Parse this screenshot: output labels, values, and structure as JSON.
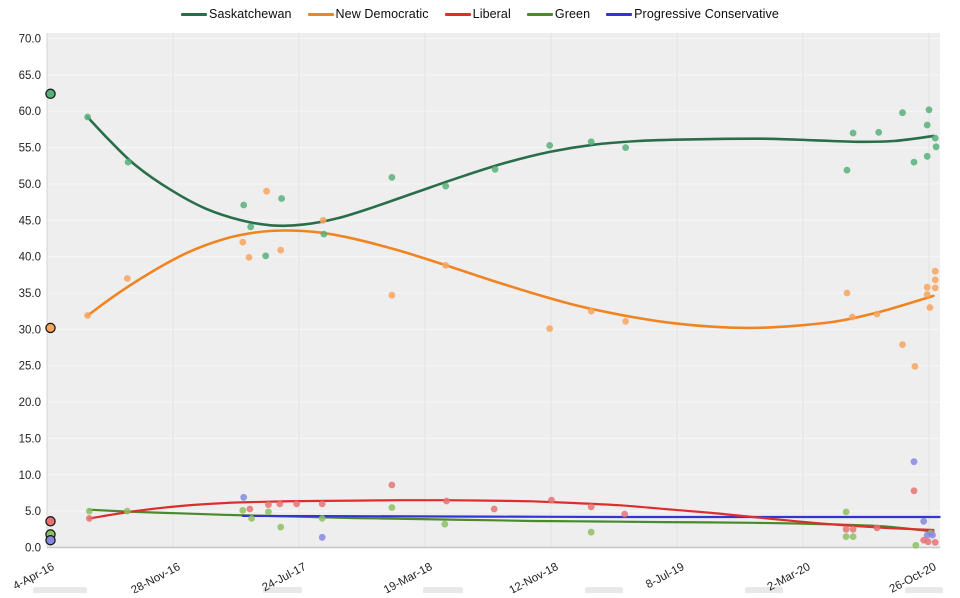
{
  "legend": {
    "items": [
      {
        "label": "Saskatchewan",
        "color": "#2a6e49"
      },
      {
        "label": "New Democratic",
        "color": "#f08421"
      },
      {
        "label": "Liberal",
        "color": "#dd2e2e"
      },
      {
        "label": "Green",
        "color": "#4a8a2c"
      },
      {
        "label": "Progressive Conservative",
        "color": "#3434d2"
      }
    ]
  },
  "chart_data": {
    "type": "scatter",
    "title": "",
    "xlabel": "",
    "ylabel": "",
    "ylim": [
      0,
      70
    ],
    "y_step": 5,
    "grid": true,
    "legend_position": "top",
    "plot_bg": "#eeeeef",
    "h_grid_color": "#f7f7f7",
    "v_grid_color": "#e3e3e3",
    "axis_line_color": "#c6c6c6",
    "label_color": "#1f1f1f",
    "x_tick_labels": [
      "4-Apr-16",
      "28-Nov-16",
      "24-Jul-17",
      "19-Mar-18",
      "12-Nov-18",
      "8-Jul-19",
      "2-Mar-20",
      "26-Oct-20"
    ],
    "y_tick_labels": [
      "0.0",
      "5.0",
      "10.0",
      "15.0",
      "20.0",
      "25.0",
      "30.0",
      "35.0",
      "40.0",
      "45.0",
      "50.0",
      "55.0",
      "60.0",
      "65.0",
      "70.0"
    ],
    "series": [
      {
        "name": "Green",
        "line_color": "#4a8a2c",
        "point_color": "#8cbf60",
        "election": [
          0.004,
          1.8
        ],
        "trend": [
          [
            0.048,
            5.2
          ],
          [
            0.1,
            4.9
          ],
          [
            0.15,
            4.7
          ],
          [
            0.2,
            4.5
          ],
          [
            0.25,
            4.35
          ],
          [
            0.3,
            4.2
          ],
          [
            0.35,
            4.05
          ],
          [
            0.4,
            3.95
          ],
          [
            0.45,
            3.85
          ],
          [
            0.5,
            3.75
          ],
          [
            0.55,
            3.65
          ],
          [
            0.6,
            3.6
          ],
          [
            0.65,
            3.55
          ],
          [
            0.7,
            3.5
          ],
          [
            0.75,
            3.45
          ],
          [
            0.8,
            3.4
          ],
          [
            0.85,
            3.3
          ],
          [
            0.9,
            3.15
          ],
          [
            0.95,
            2.9
          ],
          [
            1.005,
            2.2
          ]
        ],
        "points": [
          [
            0.048,
            5.0
          ],
          [
            0.091,
            5.0
          ],
          [
            0.222,
            5.1
          ],
          [
            0.232,
            4.0
          ],
          [
            0.251,
            4.9
          ],
          [
            0.265,
            2.8
          ],
          [
            0.312,
            4.0
          ],
          [
            0.391,
            5.5
          ],
          [
            0.451,
            3.2
          ],
          [
            0.617,
            2.1
          ],
          [
            0.906,
            4.9
          ],
          [
            0.906,
            1.5
          ],
          [
            0.914,
            1.5
          ],
          [
            0.985,
            0.3
          ],
          [
            1.002,
            2.0
          ]
        ]
      },
      {
        "name": "Progressive Conservative",
        "line_color": "#3434d2",
        "point_color": "#8787e0",
        "election": [
          0.004,
          1.0
        ],
        "trend": [
          [
            0.222,
            4.35
          ],
          [
            0.35,
            4.3
          ],
          [
            0.5,
            4.25
          ],
          [
            0.65,
            4.2
          ],
          [
            0.8,
            4.2
          ],
          [
            0.95,
            4.2
          ],
          [
            1.012,
            4.2
          ]
        ],
        "points": [
          [
            0.223,
            6.9
          ],
          [
            0.312,
            1.4
          ],
          [
            0.983,
            11.8
          ],
          [
            0.994,
            3.6
          ],
          [
            0.998,
            1.7
          ],
          [
            1.004,
            1.7
          ]
        ]
      },
      {
        "name": "Liberal",
        "line_color": "#dd2e2e",
        "point_color": "#e87272",
        "election": [
          0.004,
          3.6
        ],
        "trend": [
          [
            0.048,
            4.0
          ],
          [
            0.1,
            5.0
          ],
          [
            0.15,
            5.7
          ],
          [
            0.2,
            6.1
          ],
          [
            0.25,
            6.3
          ],
          [
            0.3,
            6.4
          ],
          [
            0.35,
            6.45
          ],
          [
            0.4,
            6.5
          ],
          [
            0.45,
            6.5
          ],
          [
            0.5,
            6.45
          ],
          [
            0.55,
            6.35
          ],
          [
            0.6,
            6.1
          ],
          [
            0.65,
            5.8
          ],
          [
            0.7,
            5.3
          ],
          [
            0.75,
            4.8
          ],
          [
            0.8,
            4.2
          ],
          [
            0.85,
            3.6
          ],
          [
            0.9,
            3.1
          ],
          [
            0.95,
            2.7
          ],
          [
            1.005,
            2.4
          ]
        ],
        "points": [
          [
            0.048,
            4.0
          ],
          [
            0.23,
            5.3
          ],
          [
            0.251,
            5.9
          ],
          [
            0.264,
            6.0
          ],
          [
            0.283,
            6.0
          ],
          [
            0.312,
            6.0
          ],
          [
            0.391,
            8.6
          ],
          [
            0.453,
            6.4
          ],
          [
            0.507,
            5.3
          ],
          [
            0.572,
            6.5
          ],
          [
            0.617,
            5.6
          ],
          [
            0.655,
            4.6
          ],
          [
            0.906,
            2.5
          ],
          [
            0.914,
            2.5
          ],
          [
            0.941,
            2.7
          ],
          [
            0.983,
            7.8
          ],
          [
            0.994,
            1.0
          ],
          [
            0.999,
            0.8
          ],
          [
            1.007,
            0.7
          ]
        ]
      },
      {
        "name": "New Democratic",
        "line_color": "#f08421",
        "point_color": "#f7a55e",
        "election": [
          0.004,
          30.2
        ],
        "trend": [
          [
            0.046,
            31.9
          ],
          [
            0.08,
            34.9
          ],
          [
            0.12,
            38.0
          ],
          [
            0.16,
            40.6
          ],
          [
            0.2,
            42.4
          ],
          [
            0.235,
            43.3
          ],
          [
            0.27,
            43.6
          ],
          [
            0.31,
            43.3
          ],
          [
            0.35,
            42.4
          ],
          [
            0.4,
            40.8
          ],
          [
            0.45,
            38.9
          ],
          [
            0.5,
            36.9
          ],
          [
            0.55,
            35.0
          ],
          [
            0.6,
            33.3
          ],
          [
            0.65,
            32.0
          ],
          [
            0.7,
            31.0
          ],
          [
            0.75,
            30.4
          ],
          [
            0.8,
            30.2
          ],
          [
            0.85,
            30.5
          ],
          [
            0.9,
            31.2
          ],
          [
            0.95,
            32.6
          ],
          [
            1.005,
            34.6
          ]
        ],
        "points": [
          [
            0.046,
            31.9
          ],
          [
            0.091,
            37.0
          ],
          [
            0.222,
            42.0
          ],
          [
            0.229,
            39.9
          ],
          [
            0.249,
            49.0
          ],
          [
            0.265,
            40.9
          ],
          [
            0.313,
            45.0
          ],
          [
            0.391,
            34.7
          ],
          [
            0.452,
            38.8
          ],
          [
            0.57,
            30.1
          ],
          [
            0.617,
            32.5
          ],
          [
            0.656,
            31.1
          ],
          [
            0.907,
            35.0
          ],
          [
            0.913,
            31.7
          ],
          [
            0.941,
            32.1
          ],
          [
            0.97,
            27.9
          ],
          [
            0.984,
            24.9
          ],
          [
            0.998,
            35.8
          ],
          [
            0.998,
            34.8
          ],
          [
            1.001,
            33.0
          ],
          [
            1.007,
            38.0
          ],
          [
            1.007,
            36.8
          ],
          [
            1.007,
            35.7
          ]
        ]
      },
      {
        "name": "Saskatchewan",
        "line_color": "#2a6e49",
        "point_color": "#57b07a",
        "election": [
          0.004,
          62.4
        ],
        "trend": [
          [
            0.046,
            59.2
          ],
          [
            0.07,
            56.1
          ],
          [
            0.1,
            52.6
          ],
          [
            0.14,
            49.2
          ],
          [
            0.18,
            46.6
          ],
          [
            0.22,
            45.0
          ],
          [
            0.255,
            44.3
          ],
          [
            0.29,
            44.4
          ],
          [
            0.33,
            45.3
          ],
          [
            0.37,
            46.8
          ],
          [
            0.42,
            48.9
          ],
          [
            0.47,
            51.0
          ],
          [
            0.52,
            52.9
          ],
          [
            0.57,
            54.4
          ],
          [
            0.62,
            55.4
          ],
          [
            0.67,
            55.9
          ],
          [
            0.72,
            56.1
          ],
          [
            0.77,
            56.2
          ],
          [
            0.82,
            56.2
          ],
          [
            0.87,
            56.0
          ],
          [
            0.92,
            55.8
          ],
          [
            0.96,
            55.9
          ],
          [
            1.005,
            56.6
          ]
        ],
        "points": [
          [
            0.046,
            59.2
          ],
          [
            0.092,
            53.0
          ],
          [
            0.223,
            47.1
          ],
          [
            0.231,
            44.1
          ],
          [
            0.248,
            40.1
          ],
          [
            0.266,
            48.0
          ],
          [
            0.314,
            43.1
          ],
          [
            0.391,
            50.9
          ],
          [
            0.452,
            49.7
          ],
          [
            0.508,
            52.0
          ],
          [
            0.57,
            55.3
          ],
          [
            0.617,
            55.8
          ],
          [
            0.656,
            55.0
          ],
          [
            0.907,
            51.9
          ],
          [
            0.914,
            57.0
          ],
          [
            0.943,
            57.1
          ],
          [
            0.97,
            59.8
          ],
          [
            0.983,
            53.0
          ],
          [
            0.998,
            58.1
          ],
          [
            0.998,
            53.8
          ],
          [
            1.0,
            60.2
          ],
          [
            1.007,
            56.3
          ],
          [
            1.008,
            55.1
          ]
        ]
      }
    ]
  },
  "footer": {
    "cells": [
      {
        "x": 33,
        "w": 54
      },
      {
        "x": 263,
        "w": 39
      },
      {
        "x": 423,
        "w": 40
      },
      {
        "x": 585,
        "w": 38
      },
      {
        "x": 745,
        "w": 38
      },
      {
        "x": 905,
        "w": 38
      }
    ]
  }
}
